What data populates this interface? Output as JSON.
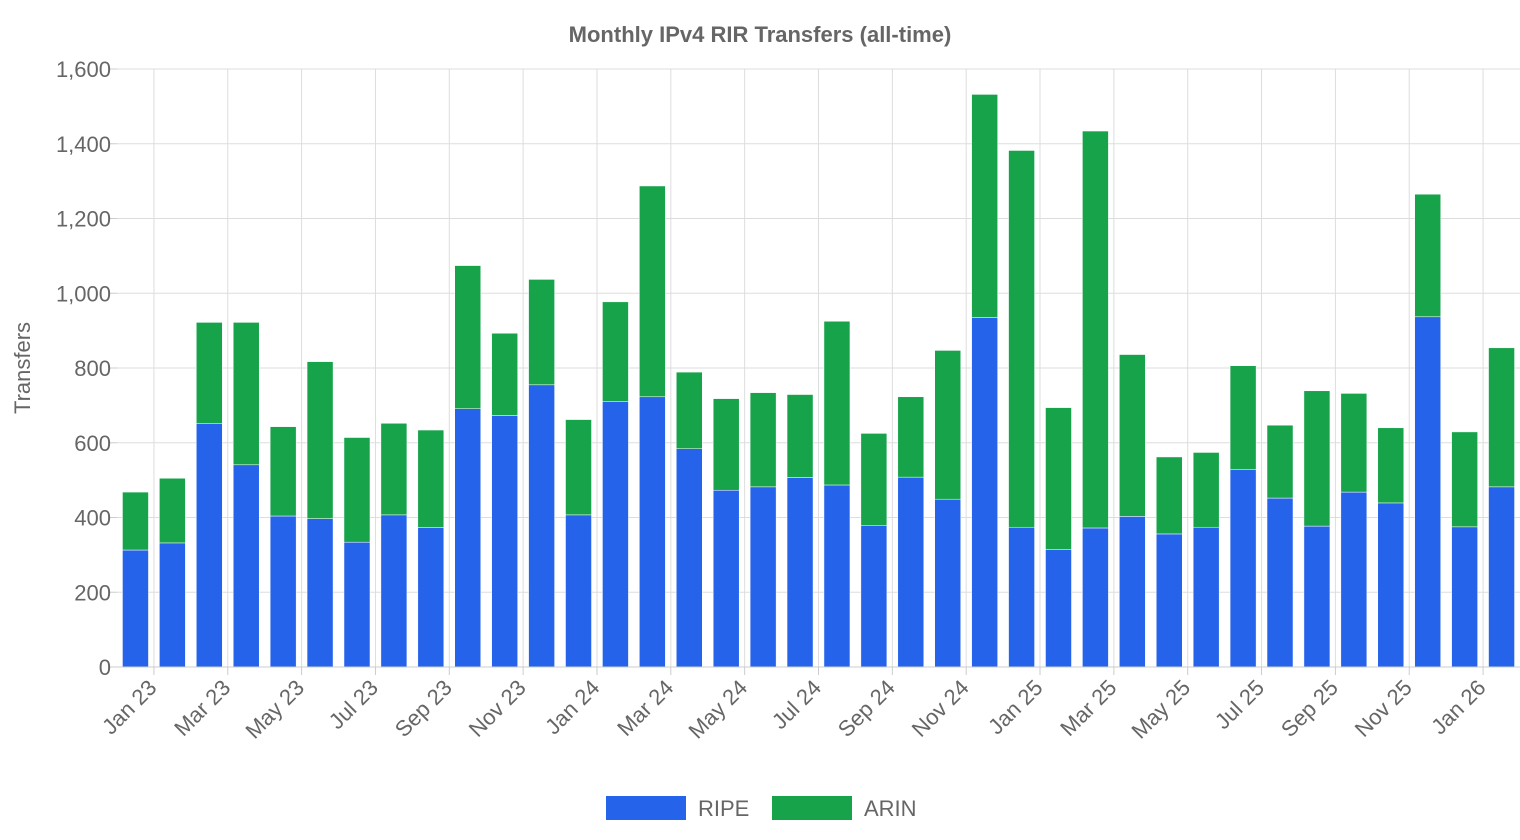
{
  "chart_data": {
    "type": "bar",
    "stacked": true,
    "title": "Monthly IPv4 RIR Transfers (all-time)",
    "ylabel": "Transfers",
    "xlabel": "",
    "ylim": [
      0,
      1600
    ],
    "yticks": [
      0,
      200,
      400,
      600,
      800,
      1000,
      1200,
      1400,
      1600
    ],
    "ytick_labels": [
      "0",
      "200",
      "400",
      "600",
      "800",
      "1,000",
      "1,200",
      "1,400",
      "1,600"
    ],
    "grid": true,
    "legend_position": "bottom",
    "categories": [
      "Jan 23",
      "Feb 23",
      "Mar 23",
      "Apr 23",
      "May 23",
      "Jun 23",
      "Jul 23",
      "Aug 23",
      "Sep 23",
      "Oct 23",
      "Nov 23",
      "Dec 23",
      "Jan 24",
      "Feb 24",
      "Mar 24",
      "Apr 24",
      "May 24",
      "Jun 24",
      "Jul 24",
      "Aug 24",
      "Sep 24",
      "Oct 24",
      "Nov 24",
      "Dec 24",
      "Jan 25",
      "Feb 25",
      "Mar 25",
      "Apr 25",
      "May 25",
      "Jun 25",
      "Jul 25",
      "Aug 25",
      "Sep 25",
      "Oct 25",
      "Nov 25",
      "Dec 25",
      "Jan 26",
      "Feb 26"
    ],
    "tick_labels": [
      "Jan 23",
      "Mar 23",
      "May 23",
      "Jul 23",
      "Sep 23",
      "Nov 23",
      "Jan 24",
      "Mar 24",
      "May 24",
      "Jul 24",
      "Sep 24",
      "Nov 24",
      "Jan 25",
      "Mar 25",
      "May 25",
      "Jul 25",
      "Sep 25",
      "Nov 25",
      "Jan 26"
    ],
    "series": [
      {
        "name": "RIPE",
        "color": "#2563eb",
        "values": [
          313,
          332,
          651,
          541,
          404,
          397,
          334,
          407,
          373,
          691,
          673,
          755,
          407,
          710,
          723,
          584,
          473,
          482,
          507,
          487,
          378,
          508,
          449,
          935,
          374,
          314,
          372,
          403,
          356,
          374,
          528,
          452,
          377,
          468,
          439,
          937,
          375,
          482
        ]
      },
      {
        "name": "ARIN",
        "color": "#16a34a",
        "values": [
          155,
          173,
          271,
          381,
          239,
          420,
          280,
          245,
          261,
          383,
          220,
          282,
          255,
          267,
          564,
          205,
          245,
          252,
          222,
          438,
          247,
          215,
          398,
          597,
          1008,
          380,
          1062,
          433,
          206,
          200,
          278,
          195,
          362,
          264,
          201,
          328,
          254,
          372
        ]
      }
    ]
  }
}
